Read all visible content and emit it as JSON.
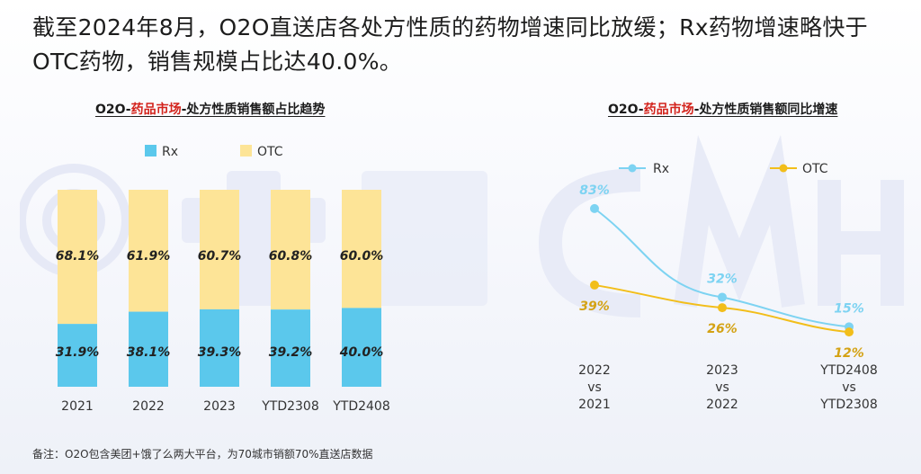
{
  "headline": "截至2024年8月，O2O直送店各处方性质的药物增速同比放缓；Rx药物增速略快于OTC药物，销售规模占比达40.0%。",
  "footnote": "备注：O2O包含美团+饿了么两大平台，为70城市销额70%直送店数据",
  "colors": {
    "rx": "#5bc8ec",
    "otc": "#fde497",
    "rx_line": "#7dd3f2",
    "otc_line": "#f2be1a",
    "otc_label": "#d4a214",
    "title_highlight": "#d3231c"
  },
  "chart_data": [
    {
      "type": "bar",
      "stacked": true,
      "percent_stacked": true,
      "title_parts": {
        "pre": "O2O-",
        "hl": "药品市场",
        "post": "-处方性质销售额占比趋势"
      },
      "categories": [
        "2021",
        "2022",
        "2023",
        "YTD2308",
        "YTD2408"
      ],
      "series": [
        {
          "name": "Rx",
          "values": [
            31.9,
            38.1,
            39.3,
            39.2,
            40.0
          ],
          "labels": [
            "31.9%",
            "38.1%",
            "39.3%",
            "39.2%",
            "40.0%"
          ]
        },
        {
          "name": "OTC",
          "values": [
            68.1,
            61.9,
            60.7,
            60.8,
            60.0
          ],
          "labels": [
            "68.1%",
            "61.9%",
            "60.7%",
            "60.8%",
            "60.0%"
          ]
        }
      ],
      "ylim": [
        0,
        100
      ],
      "legend": "top-left",
      "grid": false
    },
    {
      "type": "line",
      "title_parts": {
        "pre": "O2O-",
        "hl": "药品市场",
        "post": "-处方性质销售额同比增速"
      },
      "categories": [
        [
          "2022",
          "vs",
          "2021"
        ],
        [
          "2023",
          "vs",
          "2022"
        ],
        [
          "YTD2408",
          "vs",
          "YTD2308"
        ]
      ],
      "series": [
        {
          "name": "Rx",
          "values": [
            83,
            32,
            15
          ],
          "labels": [
            "83%",
            "32%",
            "15%"
          ]
        },
        {
          "name": "OTC",
          "values": [
            39,
            26,
            12
          ],
          "labels": [
            "39%",
            "26%",
            "12%"
          ]
        }
      ],
      "legend": "top",
      "grid": false
    }
  ]
}
